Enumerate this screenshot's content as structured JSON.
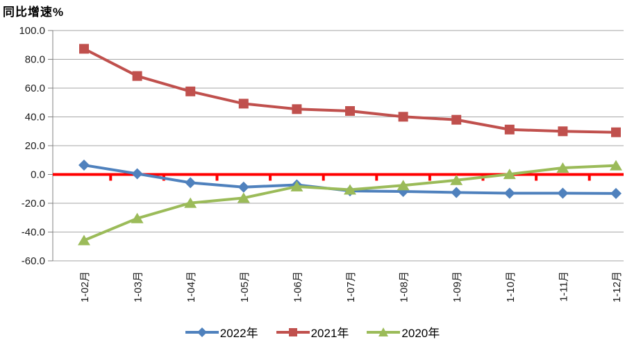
{
  "chart_data": {
    "type": "line",
    "title": "同比增速%",
    "categories": [
      "1-02月",
      "1-03月",
      "1-04月",
      "1-05月",
      "1-06月",
      "1-07月",
      "1-08月",
      "1-09月",
      "1-10月",
      "1-11月",
      "1-12月"
    ],
    "series": [
      {
        "name": "2022年",
        "color": "#4F81BD",
        "marker": "diamond",
        "values": [
          6.5,
          0.5,
          -5.7,
          -8.8,
          -7.2,
          -11.4,
          -11.8,
          -12.5,
          -13.0,
          -13.0,
          -13.2
        ]
      },
      {
        "name": "2021年",
        "color": "#C0504D",
        "marker": "square",
        "values": [
          87.3,
          68.4,
          57.7,
          49.2,
          45.4,
          44.1,
          40.1,
          38.0,
          31.2,
          30.0,
          29.3
        ]
      },
      {
        "name": "2020年",
        "color": "#9BBB59",
        "marker": "triangle",
        "values": [
          -45.8,
          -30.5,
          -19.8,
          -16.3,
          -8.4,
          -10.6,
          -7.6,
          -4.0,
          0.2,
          4.6,
          6.2
        ]
      }
    ],
    "ylim": [
      -60,
      100
    ],
    "ytick_step": 20,
    "yticks": [
      "100.0",
      "80.0",
      "60.0",
      "40.0",
      "20.0",
      "0.0",
      "-20.0",
      "-40.0",
      "-60.0"
    ],
    "xlabel": "",
    "ylabel": "同比增速%",
    "grid": true,
    "legend_position": "bottom",
    "zero_line_color": "#FF0000",
    "gridline_color": "#A6A6A6",
    "axis_color": "#808080",
    "text_color": "#1a1a1a"
  }
}
